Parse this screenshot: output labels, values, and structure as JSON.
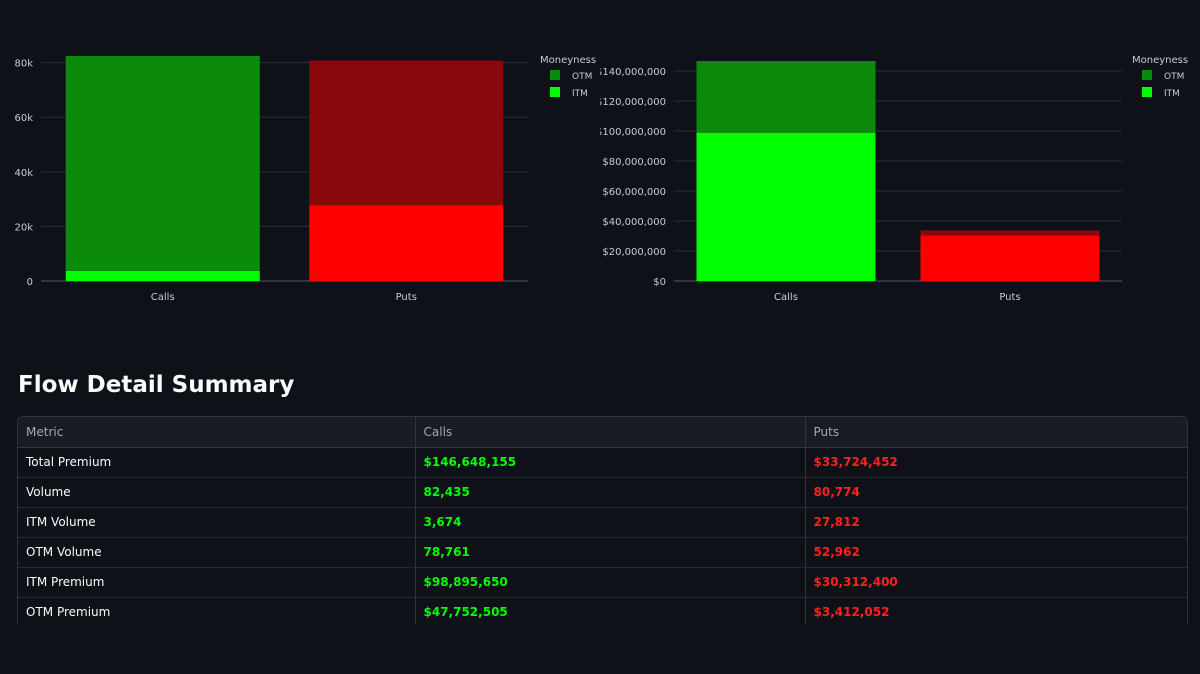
{
  "chart_data": [
    {
      "type": "bar",
      "stacked": true,
      "categories": [
        "Calls",
        "Puts"
      ],
      "series": [
        {
          "name": "ITM",
          "values": [
            3674,
            27812
          ],
          "colors": [
            "#00ff00",
            "#ff0000"
          ]
        },
        {
          "name": "OTM",
          "values": [
            78761,
            52962
          ],
          "colors": [
            "#0b8a0b",
            "#8a080b"
          ]
        }
      ],
      "legend_title": "Moneyness",
      "legend_entries": [
        {
          "name": "OTM",
          "color": "#0b8a0b"
        },
        {
          "name": "ITM",
          "color": "#00ff00"
        }
      ],
      "legend_position": "top-right",
      "ylim": [
        0,
        85000
      ],
      "yticks": [
        0,
        20000,
        40000,
        60000,
        80000
      ],
      "ytick_labels": [
        "0",
        "20k",
        "40k",
        "60k",
        "80k"
      ],
      "grid": true
    },
    {
      "type": "bar",
      "stacked": true,
      "categories": [
        "Calls",
        "Puts"
      ],
      "series": [
        {
          "name": "ITM",
          "values": [
            98895650,
            30312400
          ],
          "colors": [
            "#00ff00",
            "#ff0000"
          ]
        },
        {
          "name": "OTM",
          "values": [
            47752505,
            3412052
          ],
          "colors": [
            "#0b8a0b",
            "#8a080b"
          ]
        }
      ],
      "legend_title": "Moneyness",
      "legend_entries": [
        {
          "name": "OTM",
          "color": "#0b8a0b"
        },
        {
          "name": "ITM",
          "color": "#00ff00"
        }
      ],
      "legend_position": "top-right",
      "ylim": [
        0,
        150000000
      ],
      "yticks": [
        0,
        20000000,
        40000000,
        60000000,
        80000000,
        100000000,
        120000000,
        140000000
      ],
      "ytick_labels": [
        "$0",
        "$20,000,000",
        "$40,000,000",
        "$60,000,000",
        "$80,000,000",
        "$100,000,000",
        "$120,000,000",
        "$140,000,000"
      ],
      "grid": true
    }
  ],
  "summary": {
    "title": "Flow Detail Summary",
    "columns": [
      "Metric",
      "Calls",
      "Puts"
    ],
    "rows": [
      {
        "metric": "Total Premium",
        "calls": "$146,648,155",
        "puts": "$33,724,452"
      },
      {
        "metric": "Volume",
        "calls": "82,435",
        "puts": "80,774"
      },
      {
        "metric": "ITM Volume",
        "calls": "3,674",
        "puts": "27,812"
      },
      {
        "metric": "OTM Volume",
        "calls": "78,761",
        "puts": "52,962"
      },
      {
        "metric": "ITM Premium",
        "calls": "$98,895,650",
        "puts": "$30,312,400"
      },
      {
        "metric": "OTM Premium",
        "calls": "$47,752,505",
        "puts": "$3,412,052"
      }
    ]
  },
  "colors": {
    "calls_accent": "#00ff00",
    "puts_accent": "#ff2020",
    "background": "#0e1117"
  }
}
